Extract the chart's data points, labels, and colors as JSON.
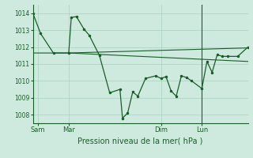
{
  "bg_color": "#ceeade",
  "grid_color": "#aacfbe",
  "line_color": "#1a5c2a",
  "title": "Pression niveau de la mer( hPa )",
  "ylim": [
    1007.5,
    1014.5
  ],
  "yticks": [
    1008,
    1009,
    1010,
    1011,
    1012,
    1013,
    1014
  ],
  "xlim": [
    0,
    84
  ],
  "day_labels": [
    "Sam",
    "Mar",
    "Dim",
    "Lun"
  ],
  "day_positions": [
    2,
    14,
    50,
    66
  ],
  "only_vline": 66,
  "line1": {
    "x": [
      0,
      3,
      8,
      14,
      15,
      17,
      20,
      22,
      26,
      30,
      34,
      35,
      37,
      39,
      41,
      44,
      48,
      50,
      52,
      54,
      56,
      58,
      60,
      62,
      66,
      68,
      70,
      72,
      74,
      76,
      80,
      84
    ],
    "y": [
      1014.0,
      1012.8,
      1011.65,
      1011.65,
      1013.75,
      1013.8,
      1013.05,
      1012.7,
      1011.5,
      1009.3,
      1009.5,
      1007.8,
      1008.1,
      1009.35,
      1009.1,
      1010.15,
      1010.3,
      1010.15,
      1010.25,
      1009.4,
      1009.1,
      1010.3,
      1010.2,
      1010.0,
      1009.55,
      1011.15,
      1010.5,
      1011.55,
      1011.45,
      1011.45,
      1011.45,
      1012.0
    ]
  },
  "line2": {
    "x": [
      0,
      14,
      84
    ],
    "y": [
      1011.65,
      1011.65,
      1011.95
    ]
  },
  "line3": {
    "x": [
      14,
      84
    ],
    "y": [
      1011.65,
      1011.15
    ]
  }
}
